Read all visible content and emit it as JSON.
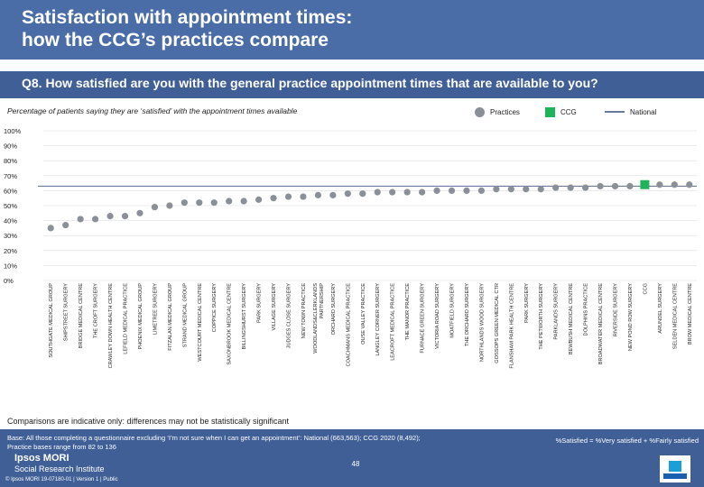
{
  "header": {
    "title_line1": "Satisfaction with appointment times:",
    "title_line2": "how the CCG’s practices compare"
  },
  "question": "Q8. How satisfied are you with the general practice appointment times that are available to you?",
  "legend": {
    "practices": "Practices",
    "ccg": "CCG",
    "national": "National"
  },
  "colors": {
    "practices": "#8a8f98",
    "ccg": "#1fb45a",
    "national": "#6a7a9a",
    "header": "#4a6da8",
    "footer": "#3f5f96"
  },
  "note": "Comparisons are indicative only: differences may not be statistically significant",
  "footer": {
    "base_line1": "Base: All those completing a questionnaire excluding ‘I’m not sure when I can get an appointment’: National (663,563); CCG 2020 (8,492);",
    "base_line2": "Practice bases range from 82 to 136",
    "formula": "%Satisfied = %Very satisfied + %Fairly satisfied",
    "logo": "Ipsos MORI",
    "logo_sub": "Social Research Institute",
    "copyright": "© Ipsos MORI     19-07180-01 | Version 1 | Public",
    "page": "48"
  },
  "chart_data": {
    "type": "scatter",
    "subtitle": "Percentage of patients saying they are ‘satisfied’ with the appointment times available",
    "yticks": [
      "0%",
      "10%",
      "20%",
      "30%",
      "40%",
      "50%",
      "60%",
      "70%",
      "80%",
      "90%",
      "100%"
    ],
    "ylim": [
      0,
      100
    ],
    "national": 63,
    "categories": [
      "SOUTHGATE MEDICAL GROUP",
      "SHIPSTREET SURGERY",
      "BRIDGE MEDICAL CENTRE",
      "THE CROFT SURGERY",
      "CRAWLEY DOWN HEALTH CENTRE",
      "LEFIELD MEDICAL PRACTICE",
      "PHOENIX MEDICAL GROUP",
      "LIMETREE SURGERY",
      "FITZALAN MEDICAL GROUP",
      "STRAND MEDICAL GROUP",
      "WESTCOURT MEDICAL CENTRE",
      "COPPICE SURGERY",
      "SAXONBROOK MEDICAL CENTRE",
      "BILLINGSHURST SURGERY",
      "PARK SURGERY",
      "VILLAGE SURGERY",
      "JUDGES CLOSE SURGERY",
      "NEW TOWN PRACTICE",
      "WOODLANDS&CLERKLANDS PARTNERSHIP",
      "ORCHARD SURGERY",
      "COACHMANS MEDICAL PRACTICE",
      "OUSE VALLEY PRACTICE",
      "LANGLEY CORNER SURGERY",
      "LEACROFT MEDICAL PRACTICE",
      "THE MANOR PRACTICE",
      "FURNACE GREEN SURGERY",
      "VICTORIA ROAD SURGERY",
      "MOATFIELD SURGERY",
      "THE ORCHARD SURGERY",
      "NORTHLANDS WOOD SURGERY",
      "GOSSOPS GREEN MEDICAL CTR",
      "FLANSHAM PARK HEALTH CENTRE",
      "PARK SURGERY",
      "THE PETWORTH SURGERY",
      "PARKLANDS SURGERY",
      "BEWBUSH MEDICAL CENTRE",
      "DOLPHINS PRACTICE",
      "BROADWATER MEDICAL CENTRE",
      "RIVERSIDE SURGERY",
      "NEW POND ROW SURGERY",
      "CCG",
      "ARUNDEL SURGERY",
      "SELDEN MEDICAL CENTRE",
      "BROW MEDICAL CENTRE"
    ],
    "values": [
      35,
      37,
      41,
      41,
      43,
      43,
      45,
      49,
      50,
      52,
      52,
      52,
      53,
      53,
      54,
      55,
      56,
      56,
      57,
      57,
      58,
      58,
      59,
      59,
      59,
      59,
      60,
      60,
      60,
      60,
      61,
      61,
      61,
      61,
      62,
      62,
      62,
      63,
      63,
      63,
      64,
      64,
      64,
      64
    ],
    "highlight": "CCG"
  }
}
